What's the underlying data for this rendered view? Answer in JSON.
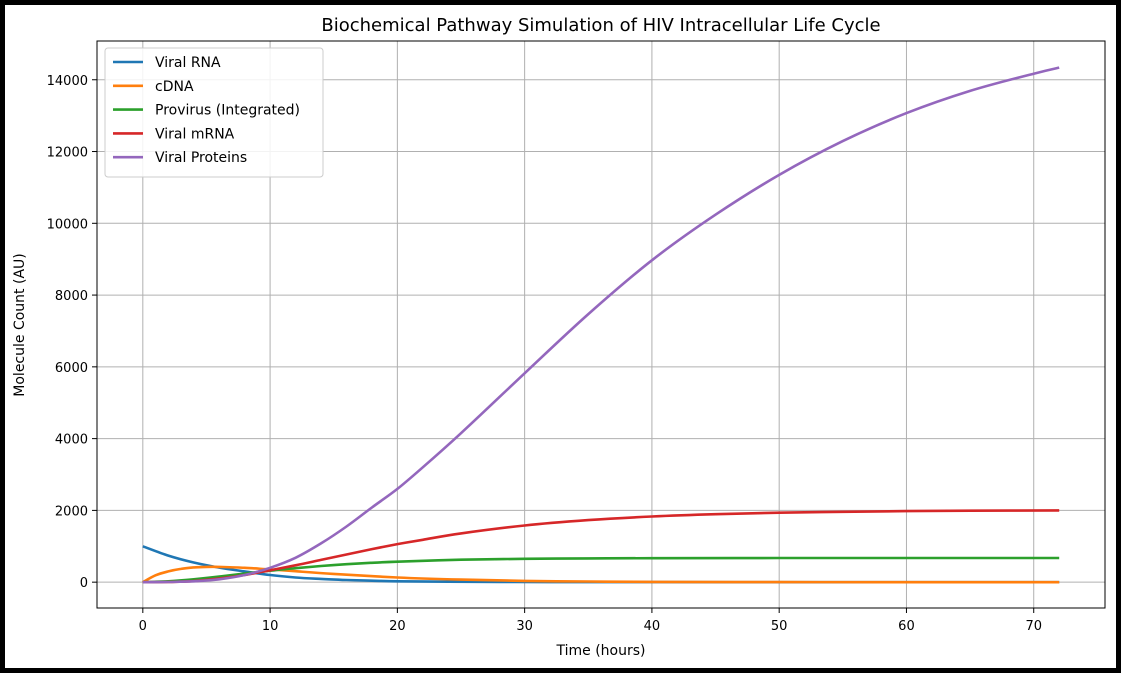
{
  "chart_data": {
    "type": "line",
    "title": "Biochemical Pathway Simulation of HIV Intracellular Life Cycle",
    "xlabel": "Time (hours)",
    "ylabel": "Molecule Count (AU)",
    "xlim": [
      -3.6,
      75.6
    ],
    "ylim": [
      -720,
      15080
    ],
    "xticks": [
      0,
      10,
      20,
      30,
      40,
      50,
      60,
      70
    ],
    "yticks": [
      0,
      2000,
      4000,
      6000,
      8000,
      10000,
      12000,
      14000
    ],
    "grid": true,
    "legend_position": "upper-left",
    "series": [
      {
        "name": "Viral RNA",
        "color": "#1f77b4",
        "x": [
          0,
          2,
          4,
          6,
          8,
          10,
          12,
          14,
          16,
          18,
          20,
          24,
          28,
          32,
          40,
          50,
          60,
          72
        ],
        "y": [
          1000,
          740,
          548,
          405,
          300,
          200,
          130,
          90,
          60,
          40,
          25,
          12,
          6,
          3,
          1,
          0,
          0,
          0
        ]
      },
      {
        "name": "cDNA",
        "color": "#ff7f0e",
        "x": [
          0,
          1,
          2,
          3,
          4,
          5,
          6,
          8,
          10,
          12,
          15,
          20,
          25,
          30,
          35,
          40,
          50,
          60,
          72
        ],
        "y": [
          0,
          190,
          300,
          370,
          410,
          425,
          425,
          400,
          355,
          305,
          230,
          130,
          70,
          35,
          18,
          8,
          2,
          0,
          0
        ]
      },
      {
        "name": "Provirus (Integrated)",
        "color": "#2ca02c",
        "x": [
          0,
          2,
          4,
          6,
          8,
          10,
          12,
          14,
          16,
          18,
          20,
          25,
          30,
          35,
          40,
          50,
          60,
          72
        ],
        "y": [
          0,
          25,
          80,
          155,
          240,
          320,
          390,
          450,
          500,
          540,
          570,
          625,
          650,
          662,
          668,
          672,
          673,
          673
        ]
      },
      {
        "name": "Viral mRNA",
        "color": "#d62728",
        "x": [
          0,
          2,
          4,
          6,
          8,
          10,
          12,
          14,
          16,
          18,
          20,
          22,
          25,
          30,
          35,
          40,
          45,
          50,
          55,
          60,
          65,
          72
        ],
        "y": [
          0,
          5,
          30,
          100,
          200,
          330,
          470,
          620,
          770,
          920,
          1060,
          1180,
          1360,
          1580,
          1730,
          1830,
          1895,
          1935,
          1960,
          1980,
          1990,
          2000
        ]
      },
      {
        "name": "Viral Proteins",
        "color": "#9467bd",
        "x": [
          0,
          2,
          4,
          6,
          8,
          10,
          12,
          14,
          16,
          18,
          20,
          22,
          25,
          30,
          35,
          40,
          45,
          50,
          55,
          60,
          65,
          70,
          72
        ],
        "y": [
          0,
          5,
          25,
          80,
          200,
          400,
          680,
          1080,
          1550,
          2080,
          2600,
          3200,
          4150,
          5820,
          7470,
          8970,
          10240,
          11350,
          12290,
          13070,
          13690,
          14170,
          14340
        ]
      }
    ]
  }
}
